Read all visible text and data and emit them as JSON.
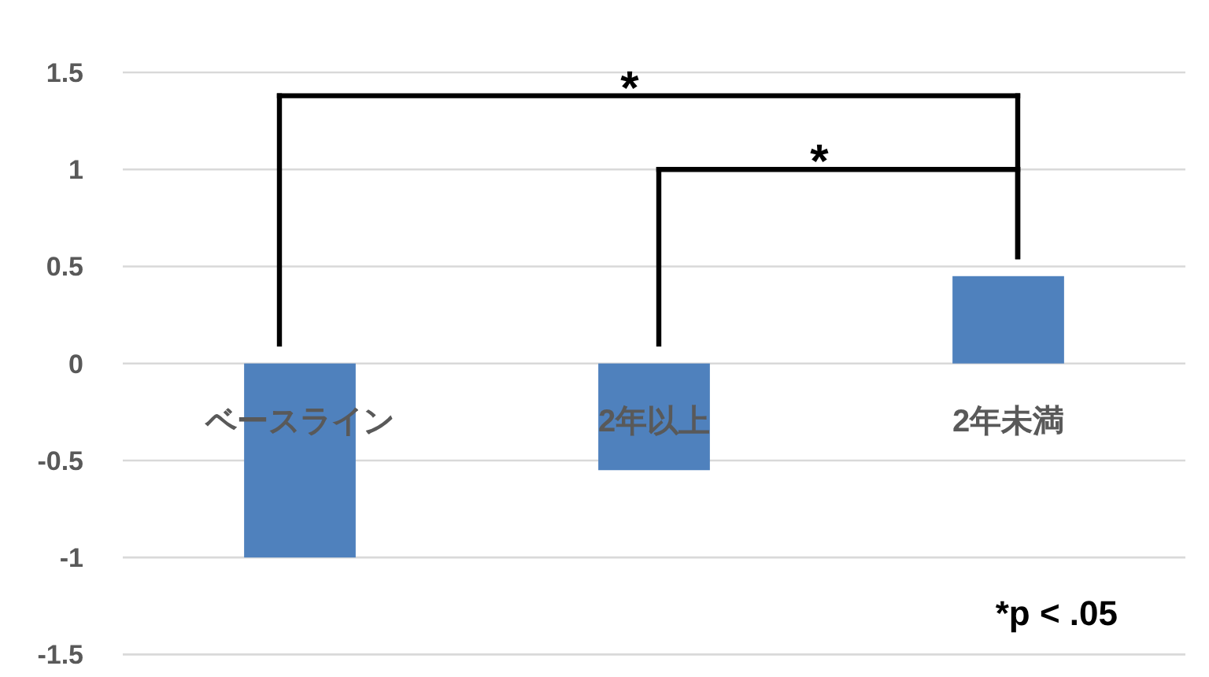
{
  "chart_data": {
    "type": "bar",
    "categories": [
      "ベースライン",
      "2年以上",
      "2年未満"
    ],
    "values": [
      -1,
      -0.55,
      0.45
    ],
    "color": "#4f81bd",
    "ylim": [
      -1.5,
      1.5
    ],
    "yticks": [
      -1.5,
      -1,
      -0.5,
      0,
      0.5,
      1,
      1.5
    ],
    "grid": "y",
    "annotations": [
      "*",
      "*",
      "*p < .05"
    ]
  }
}
